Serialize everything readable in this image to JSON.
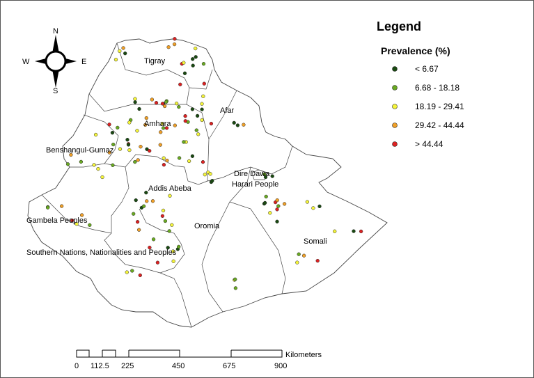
{
  "legend": {
    "title": "Legend",
    "subtitle": "Prevalence (%)",
    "classes": [
      {
        "label": "< 6.67",
        "color": "#1a4a12"
      },
      {
        "label": "6.68 - 18.18",
        "color": "#6aaa22"
      },
      {
        "label": "18.19 - 29.41",
        "color": "#f5f53a"
      },
      {
        "label": "29.42 - 44.44",
        "color": "#f0a028"
      },
      {
        "label": "> 44.44",
        "color": "#dd2222"
      }
    ]
  },
  "compass": {
    "n": "N",
    "s": "S",
    "e": "E",
    "w": "W"
  },
  "regions": {
    "tigray": "Tigray",
    "afar": "Afar",
    "amhara": "Amhara",
    "benshangul": "Benshangul-Gumaz",
    "addis": "Addis Abeba",
    "diredawa": "Dire Dawa",
    "harari": "Harari People",
    "gambela": "Gambela Peoples",
    "oromia": "Oromia",
    "somali": "Somali",
    "snnp": "Southern Nations, Nationalities and Peoples"
  },
  "scale": {
    "unit": "Kilometers",
    "ticks": [
      "0",
      "112.5",
      "225",
      "450",
      "675",
      "900"
    ]
  }
}
